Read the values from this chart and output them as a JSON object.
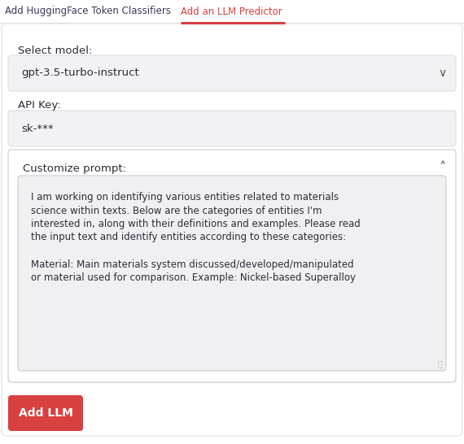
{
  "bg_color": "#ffffff",
  "tab_inactive_text": "Add HuggingFace Token Classifiers",
  "tab_active_text": "Add an LLM Predictor",
  "tab_active_color": "#d94040",
  "tab_inactive_color": "#3a3a5c",
  "tab_underline_color": "#d94040",
  "label_select_model": "Select model:",
  "dropdown_text": "gpt-3.5-turbo-instruct",
  "dropdown_bg": "#f2f2f5",
  "dropdown_border": "#e0e0e0",
  "label_api_key": "API Key:",
  "api_key_text": "sk-***",
  "api_key_bg": "#f2f2f5",
  "api_key_border": "#e0e0e0",
  "customize_label": "Customize prompt:",
  "customize_bg": "#ffffff",
  "customize_border": "#cccccc",
  "prompt_text_bg": "#f0f0f3",
  "prompt_line1": "I am working on identifying various entities related to materials",
  "prompt_line2": "science within texts. Below are the categories of entities I'm",
  "prompt_line3": "interested in, along with their definitions and examples. Please read",
  "prompt_line4": "the input text and identify entities according to these categories:",
  "prompt_line5": "",
  "prompt_line6": "Material: Main materials system discussed/developed/manipulated",
  "prompt_line7": "or material used for comparison. Example: Nickel-based Superalloy",
  "button_text": "Add LLM",
  "button_bg": "#d94040",
  "button_text_color": "#ffffff",
  "text_color": "#2c2c3a",
  "divider_color": "#e0e0e0",
  "outer_border": "#e0e0e0",
  "chevron_color": "#555555",
  "caret_color": "#555555"
}
